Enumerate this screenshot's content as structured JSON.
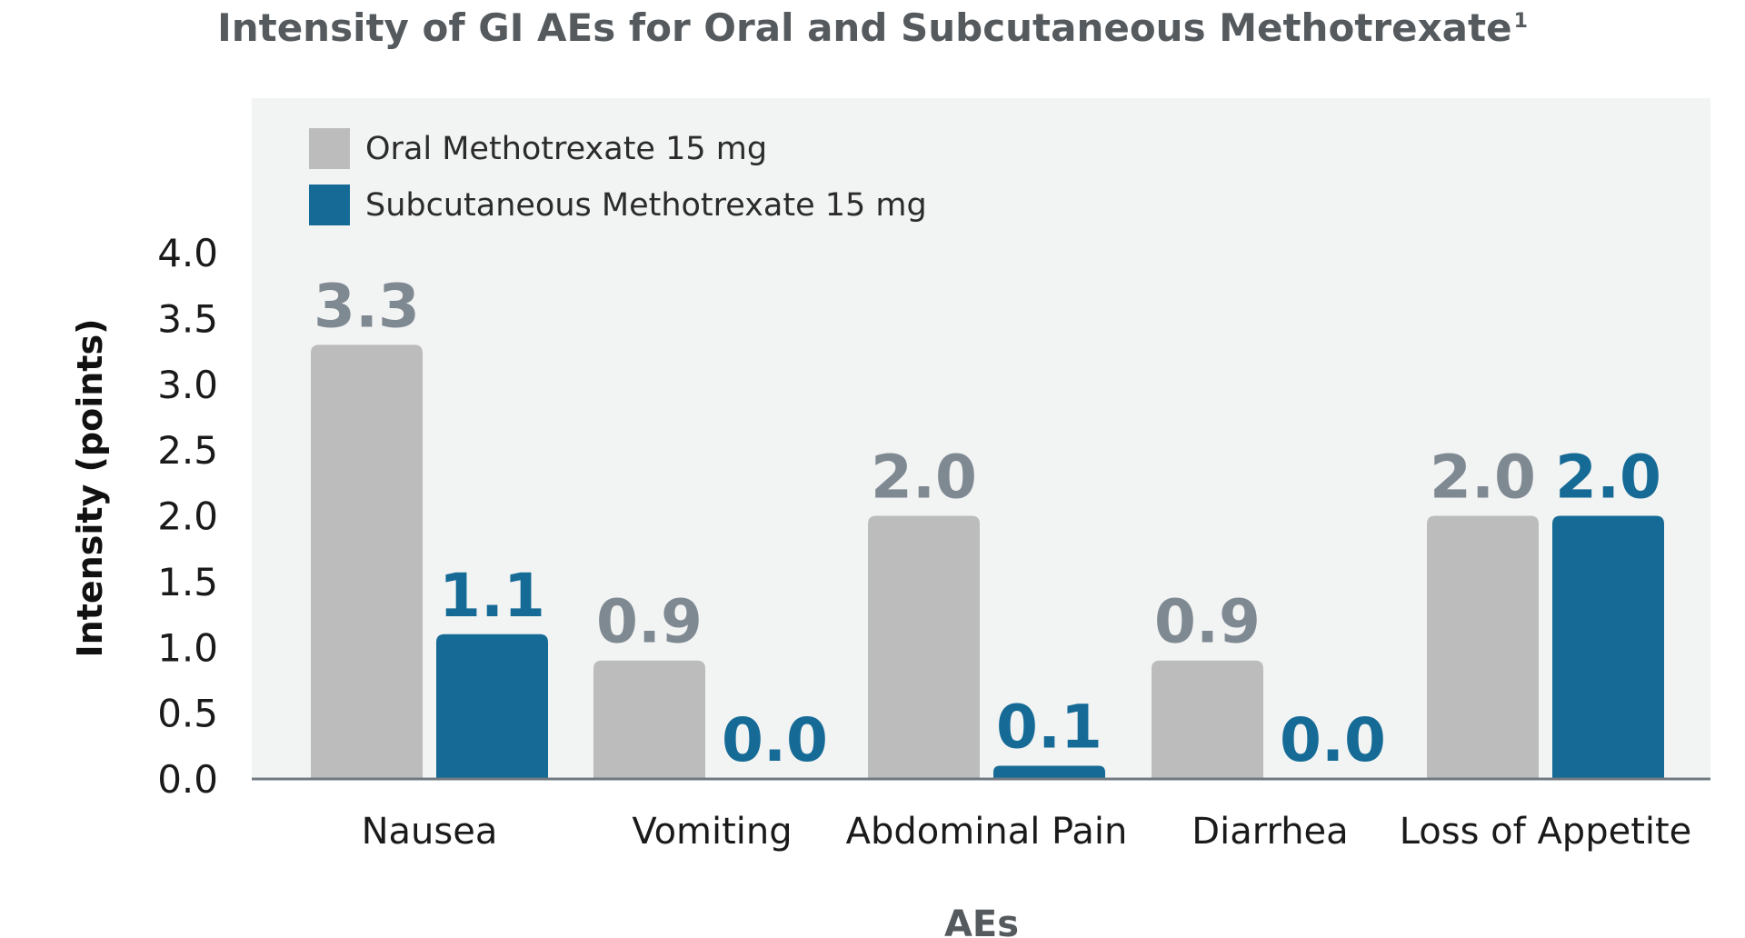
{
  "chart_data": {
    "type": "bar",
    "title": "Intensity of GI AEs for Oral and Subcutaneous Methotrexate",
    "title_superscript": "1",
    "xlabel": "AEs",
    "ylabel": "Intensity (points)",
    "ylim": [
      0,
      4.0
    ],
    "yticks": [
      "0.0",
      "0.5",
      "1.0",
      "1.5",
      "2.0",
      "2.5",
      "3.0",
      "3.5",
      "4.0"
    ],
    "categories": [
      "Nausea",
      "Vomiting",
      "Abdominal Pain",
      "Diarrhea",
      "Loss of Appetite"
    ],
    "series": [
      {
        "name": "Oral Methotrexate 15 mg",
        "values": [
          3.3,
          0.9,
          2.0,
          0.9,
          2.0
        ],
        "labels": [
          "3.3",
          "0.9",
          "2.0",
          "0.9",
          "2.0"
        ],
        "color": "#bcbcbc",
        "label_color": "#7f8992"
      },
      {
        "name": "Subcutaneous Methotrexate 15 mg",
        "values": [
          1.1,
          0.0,
          0.1,
          0.0,
          2.0
        ],
        "labels": [
          "1.1",
          "0.0",
          "0.1",
          "0.0",
          "2.0"
        ],
        "color": "#156b96",
        "label_color": "#156b96"
      }
    ],
    "legend": "top-left",
    "grid": false,
    "background": "#f2f3f3",
    "axis_color": "#707880"
  }
}
